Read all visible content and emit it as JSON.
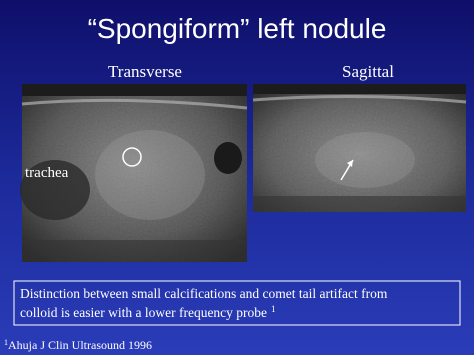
{
  "slide": {
    "title": "“Spongiform” left nodule",
    "images": [
      {
        "label": "Transverse",
        "annotation": "trachea"
      },
      {
        "label": "Sagittal"
      }
    ],
    "note": {
      "lines": [
        "Distinction between small calcifications and comet tail artifact from",
        "colloid is easier with a lower frequency probe"
      ],
      "superscript": "1"
    },
    "footnote": {
      "marker": "1",
      "text": "Ahuja J Clin Ultrasound 1996"
    }
  }
}
